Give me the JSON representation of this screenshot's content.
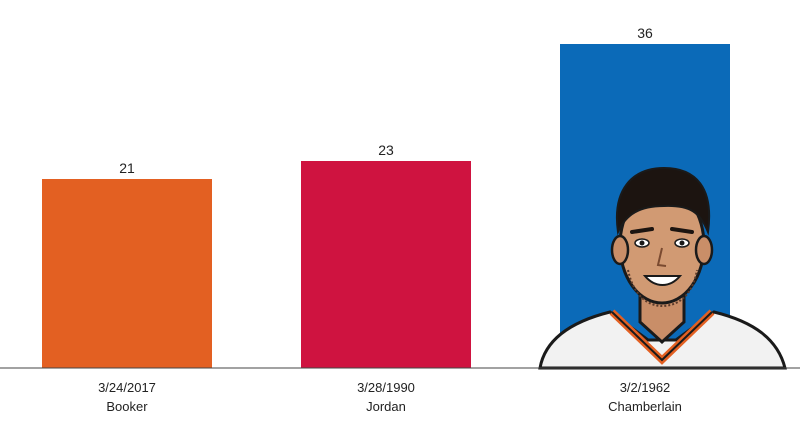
{
  "chart_data": {
    "type": "bar",
    "categories": [
      "Booker",
      "Jordan",
      "Chamberlain"
    ],
    "dates": [
      "3/24/2017",
      "3/28/1990",
      "3/2/1962"
    ],
    "values": [
      21,
      23,
      36
    ],
    "colors": [
      "#E36022",
      "#CF1340",
      "#0B6AB8"
    ],
    "ylim": [
      0,
      40
    ],
    "grid": false,
    "title": "",
    "xlabel": "",
    "ylabel": ""
  },
  "illustration": {
    "subject": "player-portrait-illustration",
    "jersey_color": "#F2F2F2",
    "trim_color": "#E36022"
  }
}
